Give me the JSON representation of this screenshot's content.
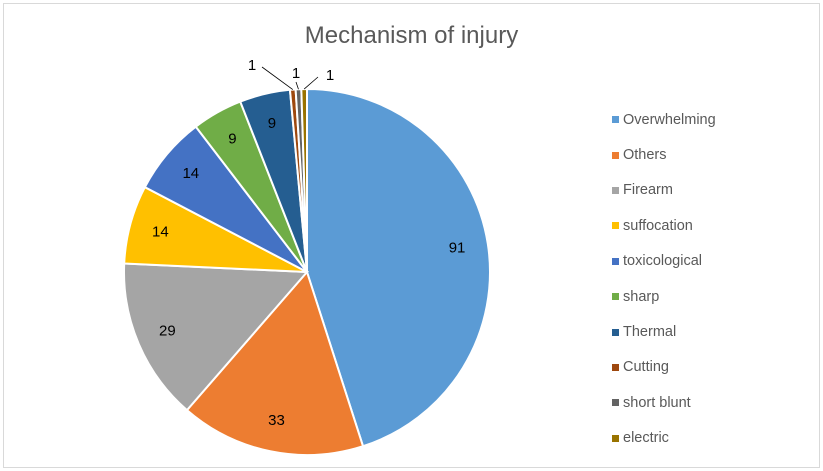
{
  "chart_data": {
    "type": "pie",
    "title": "Mechanism of injury",
    "legend_position": "right",
    "slices": [
      {
        "label": "Overwhelming",
        "value": 91,
        "color": "#5b9bd5"
      },
      {
        "label": "Others",
        "value": 33,
        "color": "#ed7d31"
      },
      {
        "label": "Firearm",
        "value": 29,
        "color": "#a5a5a5"
      },
      {
        "label": "suffocation",
        "value": 14,
        "color": "#ffc000"
      },
      {
        "label": "toxicological",
        "value": 14,
        "color": "#4472c4"
      },
      {
        "label": "sharp",
        "value": 9,
        "color": "#70ad47"
      },
      {
        "label": "Thermal",
        "value": 9,
        "color": "#255e91"
      },
      {
        "label": "Cutting",
        "value": 1,
        "color": "#9e480e"
      },
      {
        "label": "short blunt",
        "value": 1,
        "color": "#636363"
      },
      {
        "label": "electric",
        "value": 1,
        "color": "#997300"
      }
    ]
  }
}
